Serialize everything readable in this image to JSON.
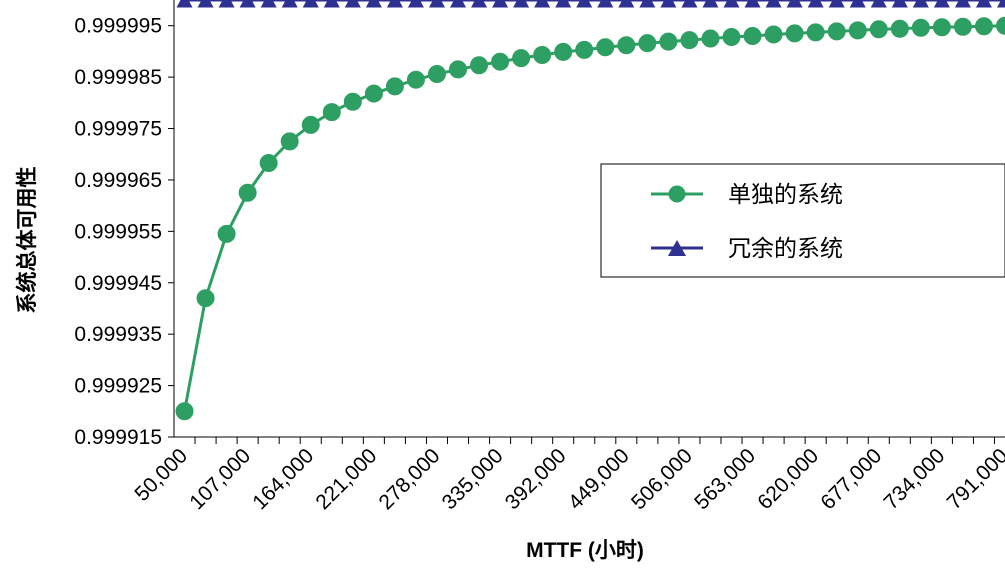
{
  "chart_data": {
    "type": "line",
    "title": "",
    "xlabel": "MTTF (小时)",
    "ylabel": "系统总体可用性",
    "y_tick_labels": [
      "0.999915",
      "0.999925",
      "0.999935",
      "0.999945",
      "0.999955",
      "0.999965",
      "0.999975",
      "0.999985",
      "0.999995"
    ],
    "ylim": [
      0.999915,
      1.0
    ],
    "x_tick_labels": [
      "50,000",
      "107,000",
      "164,000",
      "221,000",
      "278,000",
      "335,000",
      "392,000",
      "449,000",
      "506,000",
      "563,000",
      "620,000",
      "677,000",
      "734,000",
      "791,000"
    ],
    "x": [
      50000,
      69000,
      88000,
      107000,
      126000,
      145000,
      164000,
      183000,
      202000,
      221000,
      240000,
      259000,
      278000,
      297000,
      316000,
      335000,
      354000,
      373000,
      392000,
      411000,
      430000,
      449000,
      468000,
      487000,
      506000,
      525000,
      544000,
      563000,
      582000,
      601000,
      620000,
      639000,
      658000,
      677000,
      696000,
      715000,
      734000,
      753000,
      772000,
      791000
    ],
    "legend_position": "right",
    "grid": false,
    "series": [
      {
        "name": "单独的系统",
        "color": "#2e9f63",
        "marker": "circle",
        "values": [
          0.99992,
          0.999942,
          0.9999545,
          0.9999625,
          0.9999683,
          0.9999725,
          0.9999757,
          0.9999782,
          0.9999802,
          0.9999818,
          0.9999832,
          0.9999845,
          0.9999856,
          0.9999865,
          0.9999873,
          0.999988,
          0.9999887,
          0.9999893,
          0.9999899,
          0.9999903,
          0.9999908,
          0.9999912,
          0.9999916,
          0.9999919,
          0.9999922,
          0.9999925,
          0.9999928,
          0.999993,
          0.9999933,
          0.9999935,
          0.9999937,
          0.9999939,
          0.9999941,
          0.9999943,
          0.9999944,
          0.9999946,
          0.9999947,
          0.9999948,
          0.9999949,
          0.999995
        ]
      },
      {
        "name": "冗余的系统",
        "color": "#2e3192",
        "marker": "triangle",
        "values": [
          0.9999999,
          0.9999999,
          0.9999999,
          0.9999999,
          0.9999999,
          0.9999999,
          0.9999999,
          0.9999999,
          0.9999999,
          0.9999999,
          0.9999999,
          0.9999999,
          0.9999999,
          0.9999999,
          0.9999999,
          0.9999999,
          0.9999999,
          0.9999999,
          0.9999999,
          0.9999999,
          0.9999999,
          0.9999999,
          0.9999999,
          0.9999999,
          0.9999999,
          0.9999999,
          0.9999999,
          0.9999999,
          0.9999999,
          0.9999999,
          0.9999999,
          0.9999999,
          0.9999999,
          0.9999999,
          0.9999999,
          0.9999999,
          0.9999999,
          0.9999999,
          0.9999999,
          0.9999999
        ]
      }
    ]
  }
}
